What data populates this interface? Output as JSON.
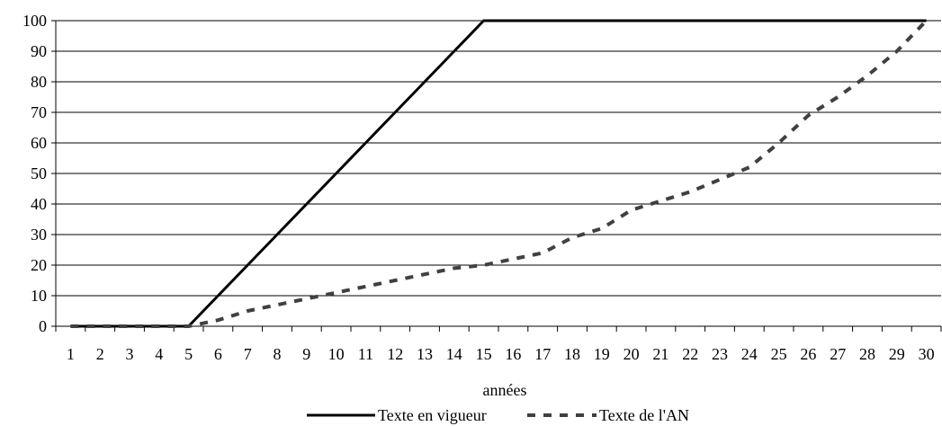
{
  "chart_data": {
    "type": "line",
    "title": "",
    "xlabel": "années",
    "ylabel": "",
    "x": [
      1,
      2,
      3,
      4,
      5,
      6,
      7,
      8,
      9,
      10,
      11,
      12,
      13,
      14,
      15,
      16,
      17,
      18,
      19,
      20,
      21,
      22,
      23,
      24,
      25,
      26,
      27,
      28,
      29,
      30
    ],
    "x_tick_labels": [
      "1",
      "2",
      "3",
      "4",
      "5",
      "6",
      "7",
      "8",
      "9",
      "10",
      "11",
      "12",
      "13",
      "14",
      "15",
      "16",
      "17",
      "18",
      "19",
      "20",
      "21",
      "22",
      "23",
      "24",
      "25",
      "26",
      "27",
      "28",
      "29",
      "30"
    ],
    "ylim": [
      0,
      100
    ],
    "y_ticks": [
      0,
      10,
      20,
      30,
      40,
      50,
      60,
      70,
      80,
      90,
      100
    ],
    "y_tick_labels": [
      "0",
      "10",
      "20",
      "30",
      "40",
      "50",
      "60",
      "70",
      "80",
      "90",
      "100"
    ],
    "grid": "horizontal",
    "legend_position": "bottom",
    "series": [
      {
        "name": "Texte en vigueur",
        "style": "solid",
        "color": "#000000",
        "values": [
          0,
          0,
          0,
          0,
          0,
          10,
          20,
          30,
          40,
          50,
          60,
          70,
          80,
          90,
          100,
          100,
          100,
          100,
          100,
          100,
          100,
          100,
          100,
          100,
          100,
          100,
          100,
          100,
          100,
          100
        ]
      },
      {
        "name": "Texte de l'AN",
        "style": "dashed",
        "color": "#404040",
        "values": [
          0,
          0,
          0,
          0,
          0,
          2,
          5,
          7,
          9,
          11,
          13,
          15,
          17,
          19,
          20,
          22,
          24,
          29,
          32,
          38,
          41,
          44,
          48,
          52,
          60,
          69,
          75,
          82,
          90,
          100
        ]
      }
    ]
  }
}
